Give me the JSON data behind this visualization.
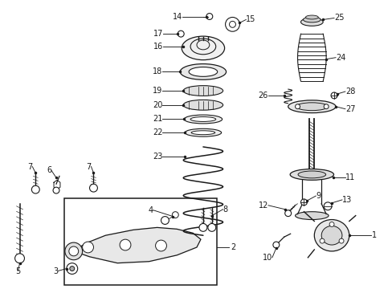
{
  "background_color": "#ffffff",
  "fig_width": 4.89,
  "fig_height": 3.6,
  "dpi": 100,
  "line_color": "#1a1a1a",
  "text_color": "#1a1a1a",
  "font_size": 7.0
}
